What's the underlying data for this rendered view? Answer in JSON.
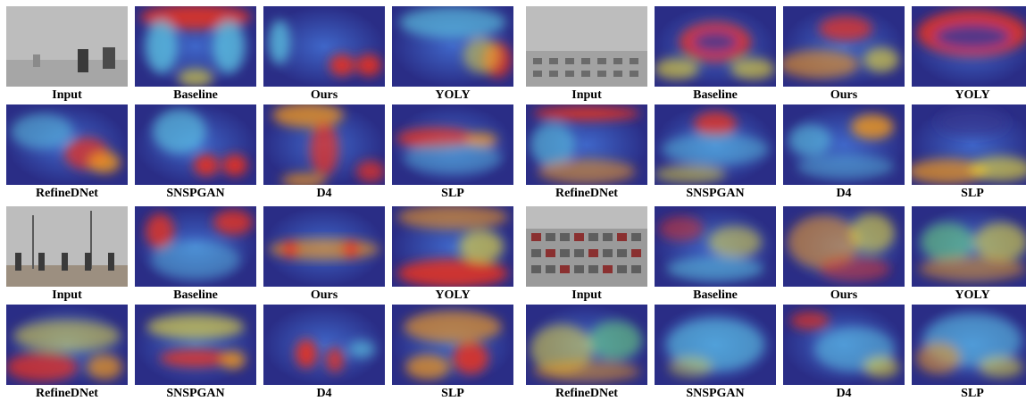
{
  "figure": {
    "panels": [
      {
        "group": "top-left",
        "scene": "foggy road with motorcyclists",
        "rows": [
          [
            {
              "label": "Input",
              "kind": "photo"
            },
            {
              "label": "Baseline",
              "kind": "heatmap"
            },
            {
              "label": "Ours",
              "kind": "heatmap"
            },
            {
              "label": "YOLY",
              "kind": "heatmap"
            }
          ],
          [
            {
              "label": "RefineDNet",
              "kind": "heatmap"
            },
            {
              "label": "SNSPGAN",
              "kind": "heatmap"
            },
            {
              "label": "D4",
              "kind": "heatmap"
            },
            {
              "label": "SLP",
              "kind": "heatmap"
            }
          ]
        ]
      },
      {
        "group": "top-right",
        "scene": "hazy city traffic",
        "rows": [
          [
            {
              "label": "Input",
              "kind": "photo"
            },
            {
              "label": "Baseline",
              "kind": "heatmap"
            },
            {
              "label": "Ours",
              "kind": "heatmap"
            },
            {
              "label": "YOLY",
              "kind": "heatmap"
            }
          ],
          [
            {
              "label": "RefineDNet",
              "kind": "heatmap"
            },
            {
              "label": "SNSPGAN",
              "kind": "heatmap"
            },
            {
              "label": "D4",
              "kind": "heatmap"
            },
            {
              "label": "SLP",
              "kind": "heatmap"
            }
          ]
        ]
      },
      {
        "group": "bottom-left",
        "scene": "foggy park with people and trees",
        "rows": [
          [
            {
              "label": "Input",
              "kind": "photo"
            },
            {
              "label": "Baseline",
              "kind": "heatmap"
            },
            {
              "label": "Ours",
              "kind": "heatmap"
            },
            {
              "label": "YOLY",
              "kind": "heatmap"
            }
          ],
          [
            {
              "label": "RefineDNet",
              "kind": "heatmap"
            },
            {
              "label": "SNSPGAN",
              "kind": "heatmap"
            },
            {
              "label": "D4",
              "kind": "heatmap"
            },
            {
              "label": "SLP",
              "kind": "heatmap"
            }
          ]
        ]
      },
      {
        "group": "bottom-right",
        "scene": "hazy highway congestion",
        "rows": [
          [
            {
              "label": "Input",
              "kind": "photo"
            },
            {
              "label": "Baseline",
              "kind": "heatmap"
            },
            {
              "label": "Ours",
              "kind": "heatmap"
            },
            {
              "label": "YOLY",
              "kind": "heatmap"
            }
          ],
          [
            {
              "label": "RefineDNet",
              "kind": "heatmap"
            },
            {
              "label": "SNSPGAN",
              "kind": "heatmap"
            },
            {
              "label": "D4",
              "kind": "heatmap"
            },
            {
              "label": "SLP",
              "kind": "heatmap"
            }
          ]
        ]
      }
    ]
  }
}
